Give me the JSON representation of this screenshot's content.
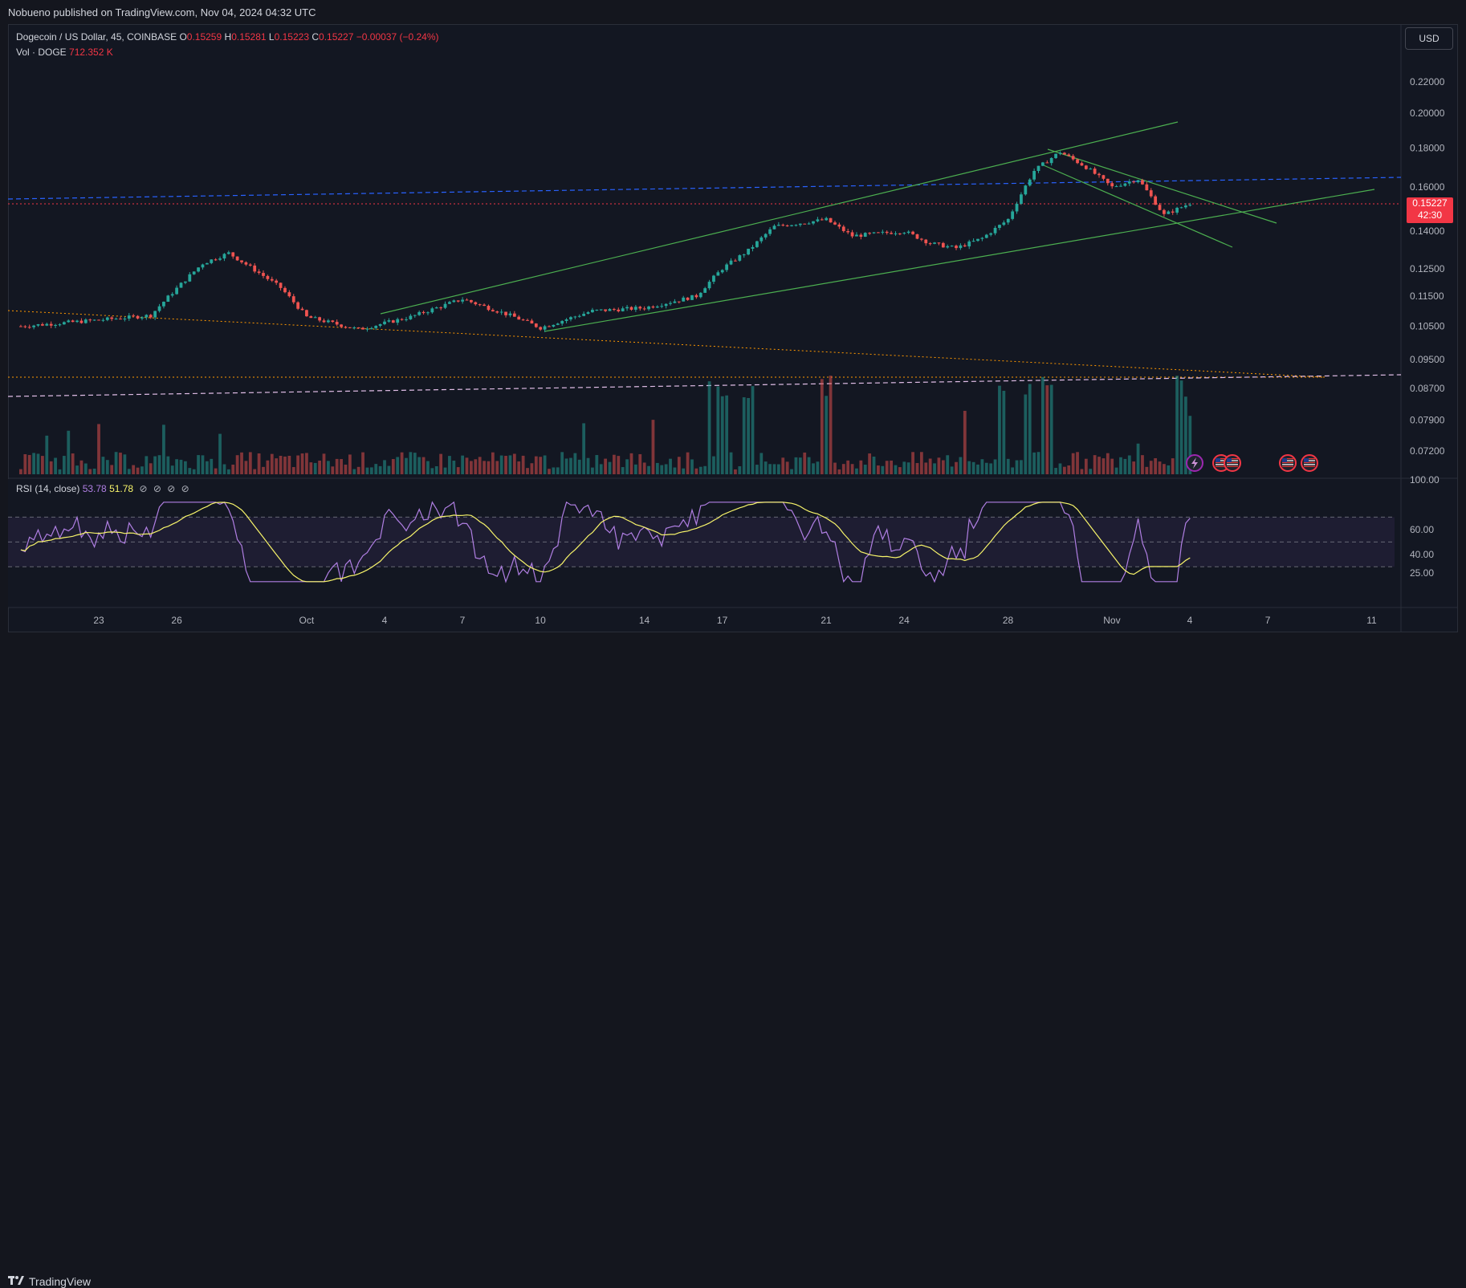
{
  "header": {
    "published_text": "Nobueno published on TradingView.com, Nov 04, 2024 04:32 UTC"
  },
  "footer": {
    "brand": "TradingView"
  },
  "legend": {
    "symbol": "Dogecoin / US Dollar, 45, COINBASE",
    "open_label": "O",
    "open": "0.15259",
    "high_label": "H",
    "high": "0.15281",
    "low_label": "L",
    "low": "0.15223",
    "close_label": "C",
    "close": "0.15227",
    "change": "−0.00037 (−0.24%)",
    "volume_label": "Vol · DOGE",
    "volume": "712.352 K"
  },
  "currency": "USD",
  "price_tag": {
    "price": "0.15227",
    "countdown": "42:30"
  },
  "rsi_legend": {
    "label": "RSI (14, close)",
    "rsi_value": "53.78",
    "ma_value": "51.78",
    "icons": [
      "⊘",
      "⊘",
      "⊘",
      "⊘"
    ]
  },
  "colors": {
    "background": "#131722",
    "up": "#26a69a",
    "down": "#ef5350",
    "channel": "#4caf50",
    "blue_level": "#2962ff",
    "orange_trend": "#ff9800",
    "rsi": "#b07fe3",
    "rsi_ma": "#f7f46a",
    "price_tag": "#f23645"
  },
  "chart_data": {
    "type": "candlestick",
    "price_axis_ticks": [
      "0.22000",
      "0.20000",
      "0.18000",
      "0.16000",
      "0.14000",
      "0.12500",
      "0.11500",
      "0.10500",
      "0.09500",
      "0.08700",
      "0.07900",
      "0.07200"
    ],
    "rsi_axis_ticks": [
      "100.00",
      "60.00",
      "40.00",
      "25.00"
    ],
    "x_ticks": [
      "23",
      "26",
      "Oct",
      "4",
      "7",
      "10",
      "14",
      "17",
      "21",
      "24",
      "28",
      "Nov",
      "4",
      "7",
      "11"
    ],
    "y_scale": "log",
    "price_anchors": [
      {
        "date": "Sep 20",
        "price": 0.105
      },
      {
        "date": "Sep 23",
        "price": 0.107
      },
      {
        "date": "Sep 25",
        "price": 0.1085
      },
      {
        "date": "Sep 27",
        "price": 0.127
      },
      {
        "date": "Sep 28",
        "price": 0.131
      },
      {
        "date": "Sep 30",
        "price": 0.118
      },
      {
        "date": "Oct 1",
        "price": 0.108
      },
      {
        "date": "Oct 3",
        "price": 0.104
      },
      {
        "date": "Oct 5",
        "price": 0.108
      },
      {
        "date": "Oct 7",
        "price": 0.114
      },
      {
        "date": "Oct 9",
        "price": 0.108
      },
      {
        "date": "Oct 10",
        "price": 0.1045
      },
      {
        "date": "Oct 12",
        "price": 0.11
      },
      {
        "date": "Oct 14",
        "price": 0.111
      },
      {
        "date": "Oct 16",
        "price": 0.115
      },
      {
        "date": "Oct 17",
        "price": 0.125
      },
      {
        "date": "Oct 18",
        "price": 0.132
      },
      {
        "date": "Oct 19",
        "price": 0.142
      },
      {
        "date": "Oct 21",
        "price": 0.145
      },
      {
        "date": "Oct 22",
        "price": 0.138
      },
      {
        "date": "Oct 24",
        "price": 0.14
      },
      {
        "date": "Oct 25",
        "price": 0.135
      },
      {
        "date": "Oct 26",
        "price": 0.133
      },
      {
        "date": "Oct 27",
        "price": 0.137
      },
      {
        "date": "Oct 28",
        "price": 0.145
      },
      {
        "date": "Oct 29",
        "price": 0.168
      },
      {
        "date": "Oct 30",
        "price": 0.178
      },
      {
        "date": "Oct 31",
        "price": 0.17
      },
      {
        "date": "Nov 1",
        "price": 0.16
      },
      {
        "date": "Nov 2",
        "price": 0.164
      },
      {
        "date": "Nov 3",
        "price": 0.147
      },
      {
        "date": "Nov 4",
        "price": 0.1523
      }
    ],
    "rsi_levels": {
      "upper": 70,
      "middle": 50,
      "lower": 30
    }
  }
}
